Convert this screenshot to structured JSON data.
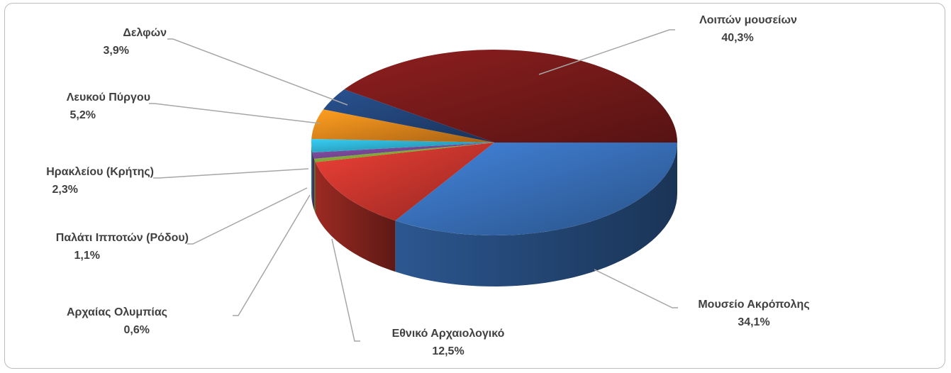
{
  "chart_data": {
    "type": "pie",
    "style": "3d-exploded-none",
    "title": "",
    "categories": [
      "Μουσείο Ακρόπολης",
      "Εθνικό Αρχαιολογικό",
      "Αρχαίας Ολυμπίας",
      "Παλάτι Ιπποτών (Ρόδου)",
      "Ηρακλείου (Κρήτης)",
      "Λευκού Πύργου",
      "Δελφών",
      "Λοιπών μουσείων"
    ],
    "values": [
      34.1,
      12.5,
      0.6,
      1.1,
      2.3,
      5.2,
      3.9,
      40.3
    ],
    "value_labels": [
      "34,1%",
      "12,5%",
      "0,6%",
      "1,1%",
      "2,3%",
      "5,2%",
      "3,9%",
      "40,3%"
    ],
    "colors": [
      "#3a74c0",
      "#d0382f",
      "#8bb33c",
      "#7c4a9c",
      "#2fb4d6",
      "#f08a1c",
      "#24477e",
      "#7c1b1b"
    ],
    "legend": "none",
    "data_labels": "outside-with-leader-lines"
  }
}
